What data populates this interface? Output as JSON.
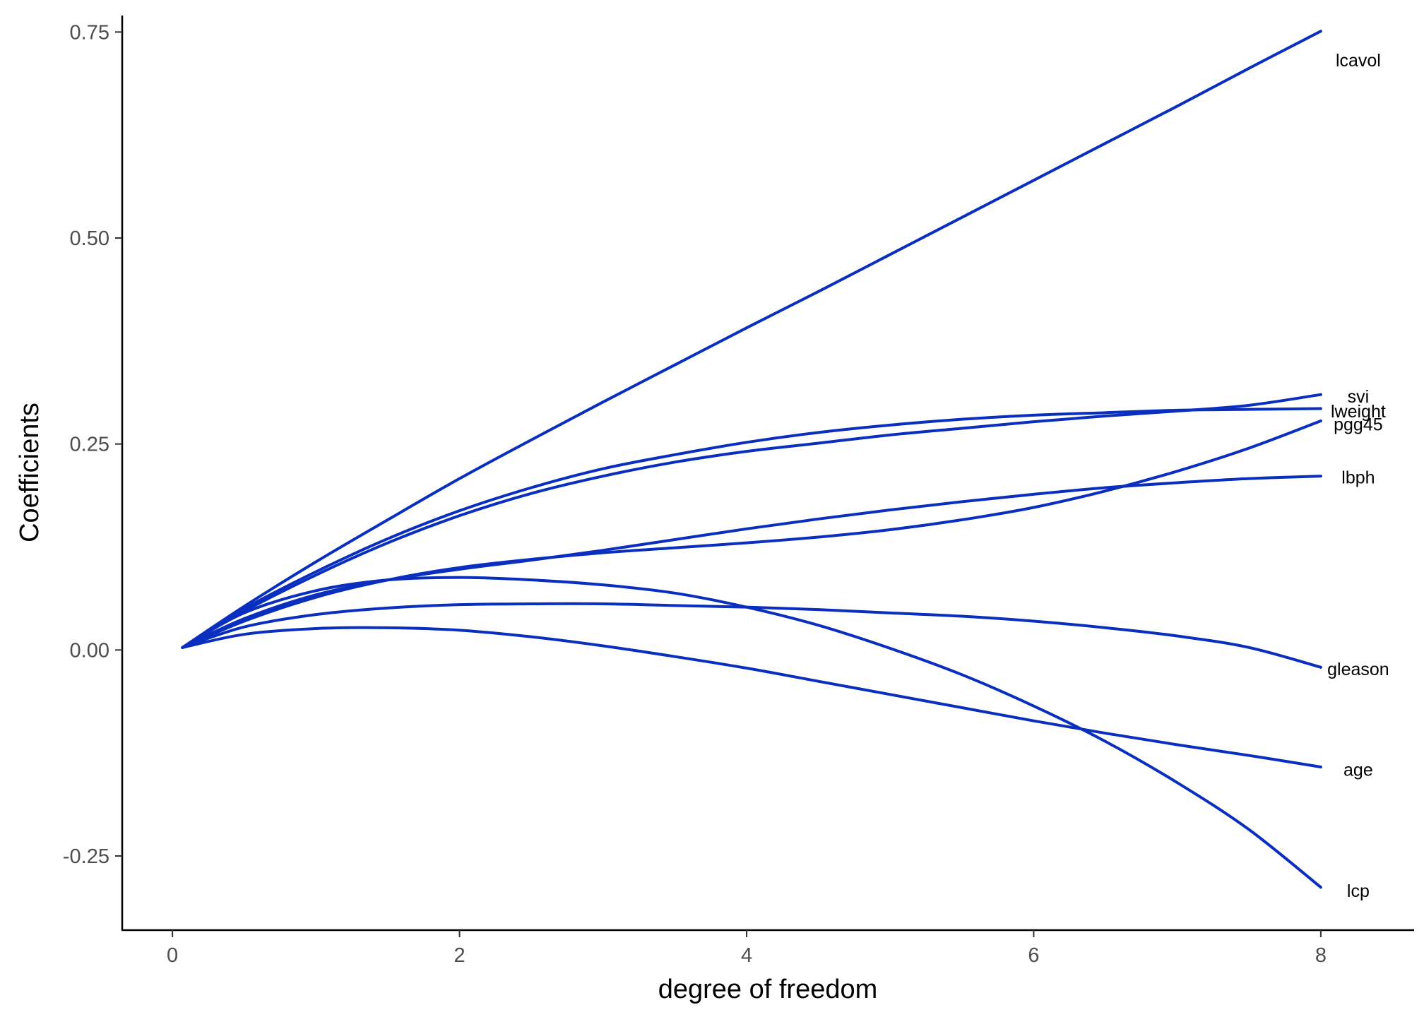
{
  "chart_data": {
    "type": "line",
    "title": "",
    "xlabel": "degree of freedom",
    "ylabel": "Coefficients",
    "xlim": [
      -0.35,
      8.65
    ],
    "ylim": [
      -0.34,
      0.77
    ],
    "xticks": [
      0,
      2,
      4,
      6,
      8
    ],
    "xtick_labels": [
      "0",
      "2",
      "4",
      "6",
      "8"
    ],
    "yticks": [
      -0.25,
      0,
      0.25,
      0.5,
      0.75
    ],
    "ytick_labels": [
      "-0.25",
      "0.00",
      "0.25",
      "0.50",
      "0.75"
    ],
    "grid": false,
    "legend": "none",
    "line_color": "#0a2fbf",
    "x": [
      0.07,
      0.5,
      1,
      1.5,
      2,
      2.5,
      3,
      3.5,
      4,
      4.5,
      5,
      5.5,
      6,
      6.5,
      7,
      7.5,
      8
    ],
    "series": [
      {
        "name": "lcavol",
        "values": [
          0.003,
          0.053,
          0.107,
          0.158,
          0.208,
          0.255,
          0.301,
          0.346,
          0.391,
          0.435,
          0.48,
          0.525,
          0.57,
          0.615,
          0.66,
          0.706,
          0.751
        ]
      },
      {
        "name": "svi",
        "values": [
          0.003,
          0.047,
          0.091,
          0.13,
          0.163,
          0.19,
          0.211,
          0.228,
          0.241,
          0.251,
          0.261,
          0.269,
          0.277,
          0.284,
          0.29,
          0.297,
          0.31
        ]
      },
      {
        "name": "lweight",
        "values": [
          0.003,
          0.05,
          0.095,
          0.135,
          0.169,
          0.197,
          0.22,
          0.237,
          0.252,
          0.264,
          0.273,
          0.28,
          0.285,
          0.288,
          0.291,
          0.292,
          0.293
        ]
      },
      {
        "name": "pgg45",
        "values": [
          0.003,
          0.035,
          0.064,
          0.085,
          0.1,
          0.11,
          0.118,
          0.124,
          0.13,
          0.137,
          0.146,
          0.158,
          0.173,
          0.193,
          0.217,
          0.245,
          0.278
        ]
      },
      {
        "name": "lbph",
        "values": [
          0.003,
          0.038,
          0.067,
          0.085,
          0.098,
          0.109,
          0.121,
          0.134,
          0.147,
          0.159,
          0.17,
          0.18,
          0.189,
          0.197,
          0.203,
          0.208,
          0.211
        ]
      },
      {
        "name": "gleason",
        "values": [
          0.003,
          0.028,
          0.043,
          0.051,
          0.055,
          0.056,
          0.056,
          0.054,
          0.052,
          0.049,
          0.045,
          0.041,
          0.035,
          0.027,
          0.017,
          0.003,
          -0.021
        ]
      },
      {
        "name": "age",
        "values": [
          0.003,
          0.019,
          0.026,
          0.027,
          0.024,
          0.016,
          0.005,
          -0.008,
          -0.022,
          -0.038,
          -0.054,
          -0.07,
          -0.086,
          -0.101,
          -0.115,
          -0.128,
          -0.142
        ]
      },
      {
        "name": "lcp",
        "values": [
          0.003,
          0.045,
          0.072,
          0.085,
          0.088,
          0.085,
          0.079,
          0.069,
          0.052,
          0.03,
          0.002,
          -0.03,
          -0.068,
          -0.111,
          -0.161,
          -0.218,
          -0.288
        ]
      }
    ],
    "end_labels": [
      {
        "series": "lcavol",
        "text": "lcavol",
        "y": 0.716
      },
      {
        "series": "svi",
        "text": "svi",
        "y": 0.308
      },
      {
        "series": "lweight",
        "text": "lweight",
        "y": 0.29
      },
      {
        "series": "pgg45",
        "text": "pgg45",
        "y": 0.274
      },
      {
        "series": "lbph",
        "text": "lbph",
        "y": 0.21
      },
      {
        "series": "gleason",
        "text": "gleason",
        "y": -0.023
      },
      {
        "series": "age",
        "text": "age",
        "y": -0.145
      },
      {
        "series": "lcp",
        "text": "lcp",
        "y": -0.292
      }
    ]
  }
}
